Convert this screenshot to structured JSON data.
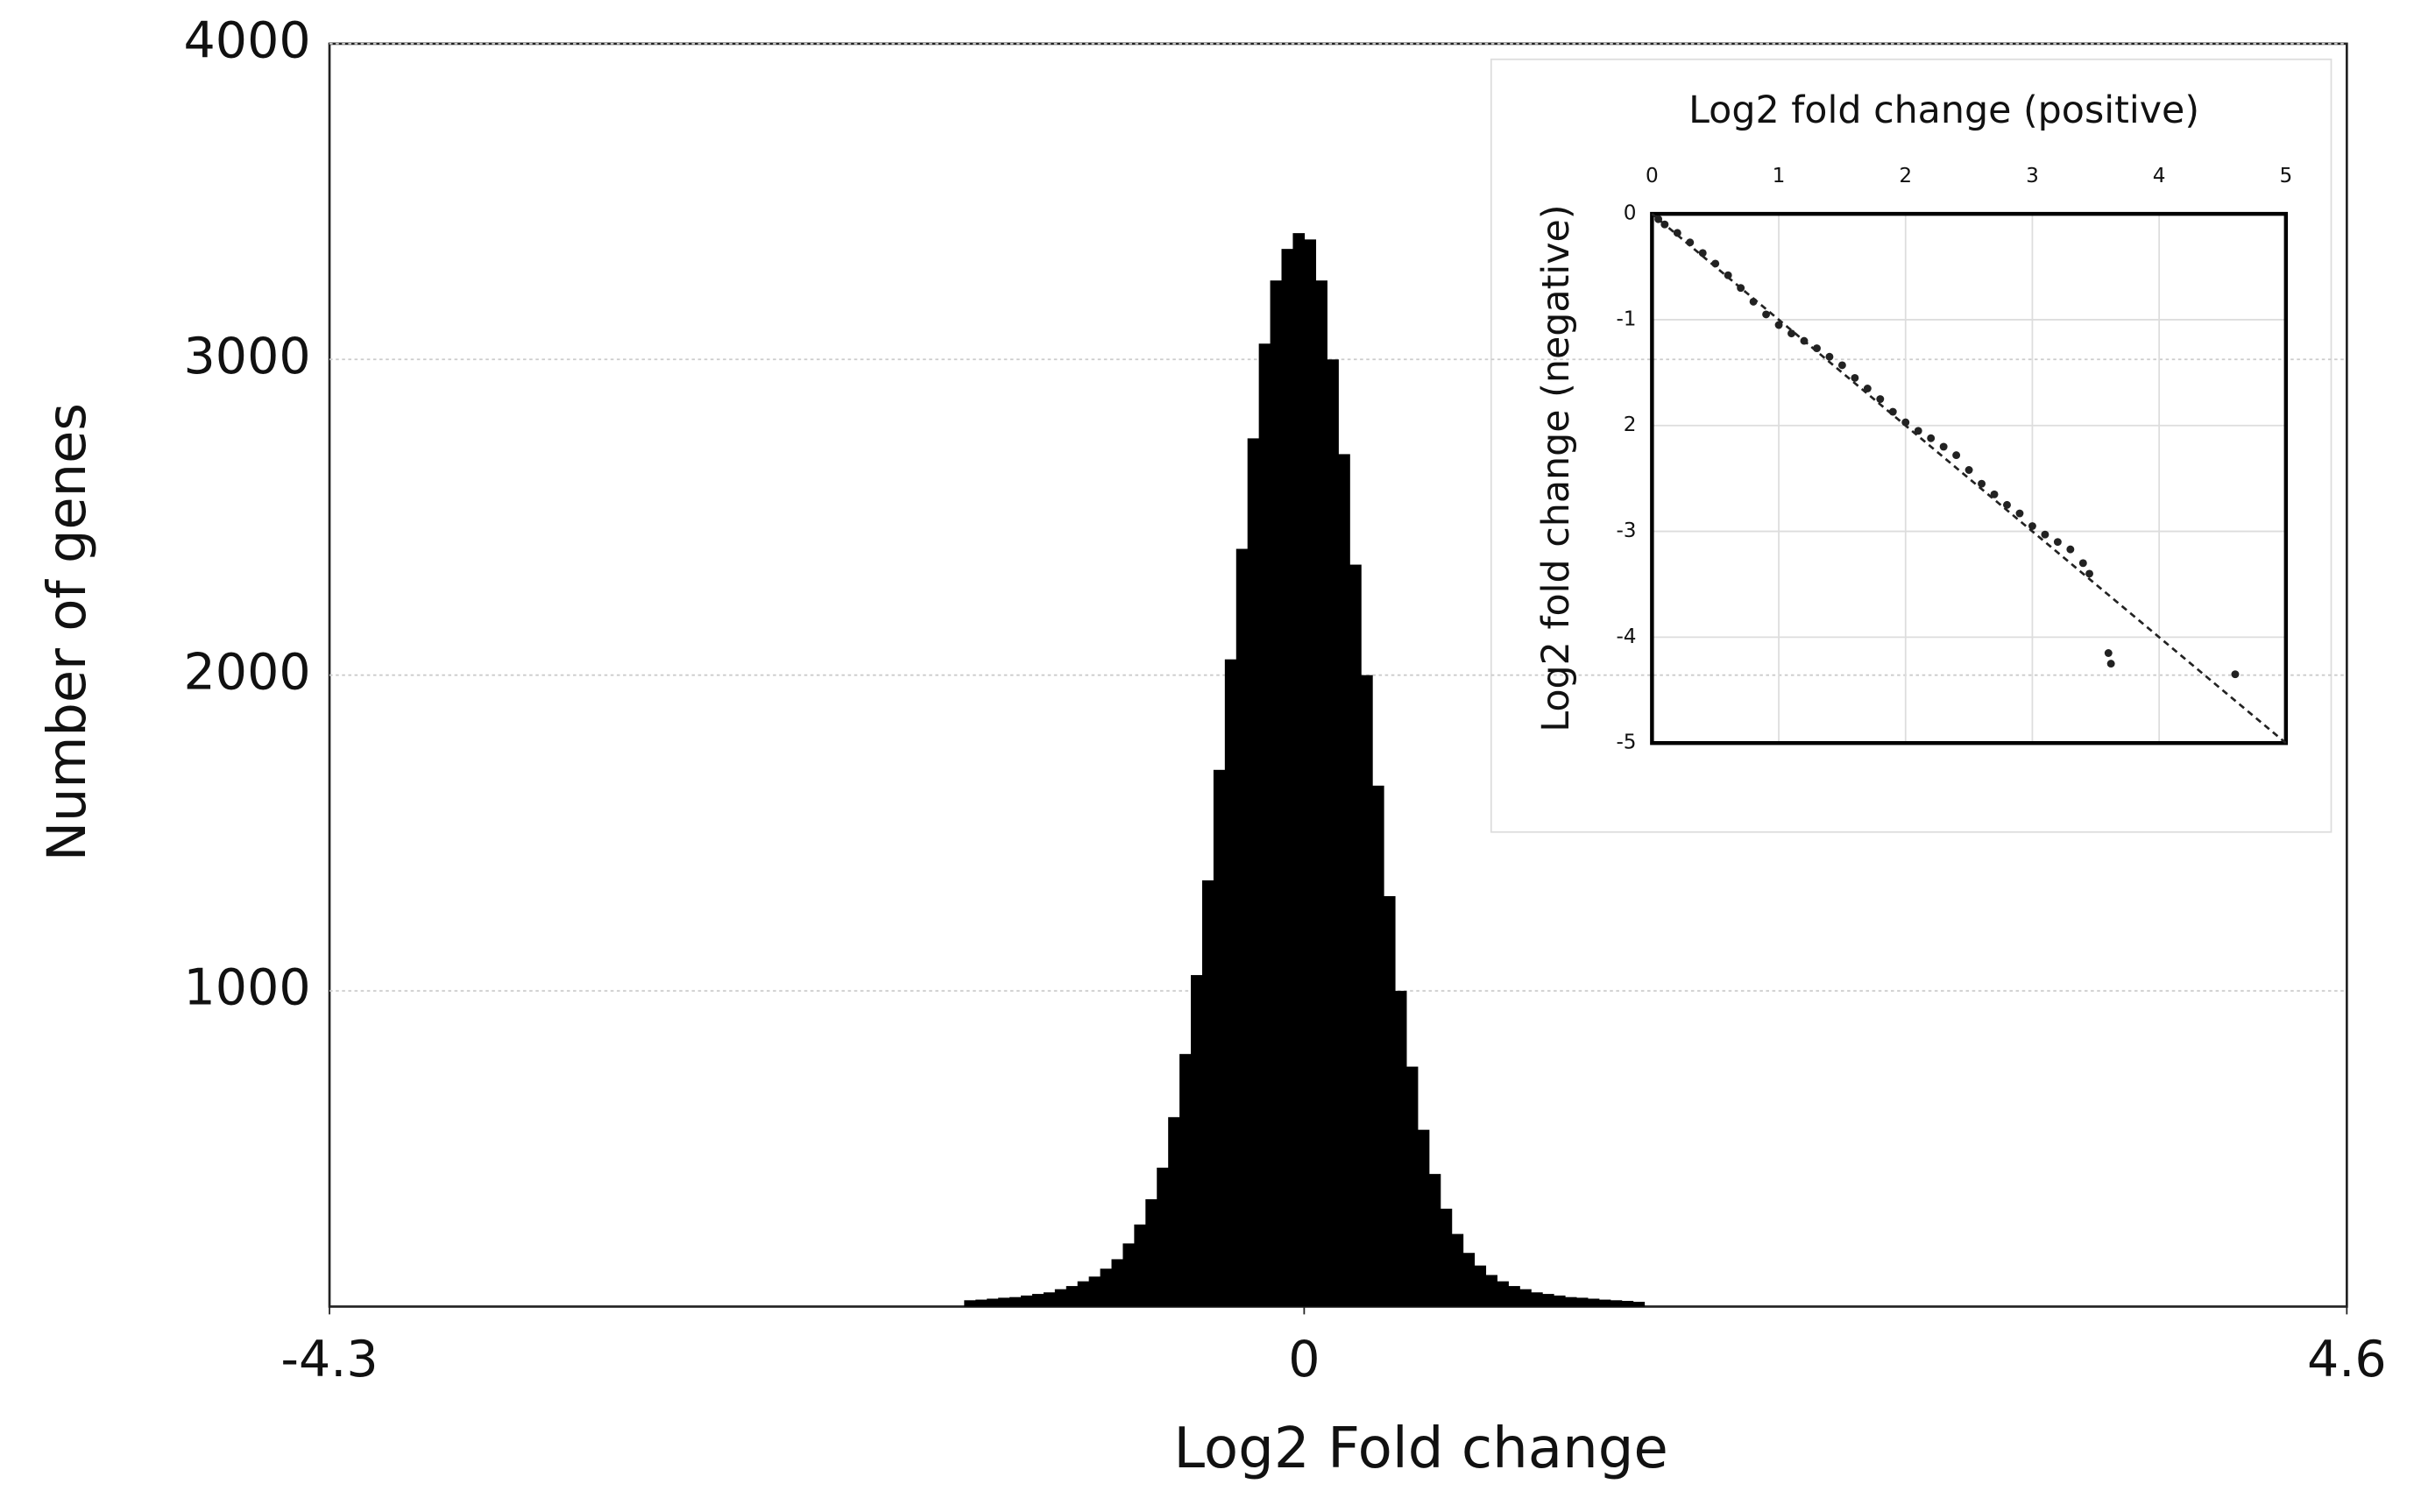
{
  "chart_data": [
    {
      "type": "histogram",
      "x_label": "Log2 Fold change",
      "y_label": "Number of genes",
      "bins": [
        -1.5,
        -1.45,
        -1.4,
        -1.35,
        -1.3,
        -1.25,
        -1.2,
        -1.15,
        -1.1,
        -1.05,
        -1.0,
        -0.95,
        -0.9,
        -0.85,
        -0.8,
        -0.75,
        -0.7,
        -0.65,
        -0.6,
        -0.55,
        -0.5,
        -0.45,
        -0.4,
        -0.35,
        -0.3,
        -0.25,
        -0.2,
        -0.15,
        -0.1,
        -0.05,
        0,
        0.05,
        0.1,
        0.15,
        0.2,
        0.25,
        0.3,
        0.35,
        0.4,
        0.45,
        0.5,
        0.55,
        0.6,
        0.65,
        0.7,
        0.75,
        0.8,
        0.85,
        0.9,
        0.95,
        1.0,
        1.05,
        1.1,
        1.15,
        1.2,
        1.25,
        1.3,
        1.35,
        1.4,
        1.45,
        1.5
      ],
      "values": [
        20,
        22,
        25,
        28,
        30,
        35,
        40,
        45,
        55,
        65,
        80,
        95,
        120,
        150,
        200,
        260,
        340,
        440,
        600,
        800,
        1050,
        1350,
        1700,
        2050,
        2400,
        2750,
        3050,
        3250,
        3350,
        3400,
        3380,
        3250,
        3000,
        2700,
        2350,
        2000,
        1650,
        1300,
        1000,
        760,
        560,
        420,
        310,
        230,
        170,
        130,
        100,
        80,
        65,
        55,
        45,
        40,
        35,
        30,
        28,
        25,
        22,
        20,
        18,
        15
      ],
      "color": "#000000",
      "xlim": [
        -4.3,
        4.6
      ],
      "xticks": [
        -4.3,
        0,
        4.6
      ],
      "ylim": [
        0,
        4000
      ],
      "yticks": [
        1000,
        2000,
        3000,
        4000
      ],
      "grid": true
    },
    {
      "type": "scatter",
      "title": "Log2 fold change (positive)",
      "y_label": "Log2 fold change (negative)",
      "xlim": [
        0,
        5
      ],
      "xticks": [
        0,
        1,
        2,
        3,
        4,
        5
      ],
      "ylim": [
        -5,
        0
      ],
      "yticks": [
        0,
        -1,
        {
          "value": -2,
          "label": "2"
        },
        -3,
        -4,
        -5
      ],
      "grid": true,
      "series": [
        {
          "style": "points",
          "color": "#222222",
          "x": [
            0.05,
            0.1,
            0.2,
            0.3,
            0.4,
            0.5,
            0.6,
            0.7,
            0.8,
            0.9,
            1.0,
            1.1,
            1.2,
            1.3,
            1.4,
            1.5,
            1.6,
            1.7,
            1.8,
            1.9,
            2.0,
            2.1,
            2.2,
            2.3,
            2.4,
            2.5,
            2.6,
            2.7,
            2.8,
            2.9,
            3.0,
            3.1,
            3.2,
            3.3,
            3.4,
            3.45,
            3.6,
            3.62,
            4.6
          ],
          "values": [
            -0.05,
            -0.1,
            -0.18,
            -0.27,
            -0.37,
            -0.47,
            -0.58,
            -0.7,
            -0.83,
            -0.95,
            -1.05,
            -1.13,
            -1.2,
            -1.27,
            -1.35,
            -1.43,
            -1.55,
            -1.65,
            -1.75,
            -1.87,
            -1.97,
            -2.05,
            -2.12,
            -2.2,
            -2.28,
            -2.42,
            -2.55,
            -2.65,
            -2.75,
            -2.83,
            -2.95,
            -3.03,
            -3.1,
            -3.17,
            -3.3,
            -3.4,
            -4.15,
            -4.25,
            -4.35
          ]
        },
        {
          "style": "dashed",
          "color": "#222222",
          "x": [
            0,
            5
          ],
          "values": [
            0,
            -5
          ]
        }
      ]
    }
  ]
}
